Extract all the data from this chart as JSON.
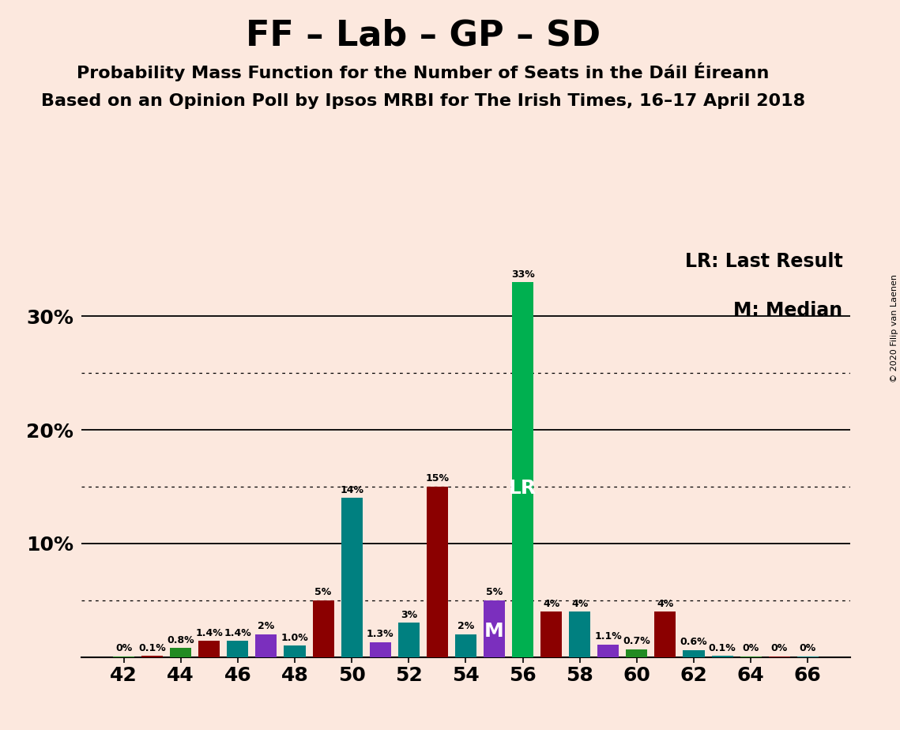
{
  "title": "FF – Lab – GP – SD",
  "subtitle1": "Probability Mass Function for the Number of Seats in the Dáil Éireann",
  "subtitle2": "Based on an Opinion Poll by Ipsos MRBI for The Irish Times, 16–17 April 2018",
  "copyright": "© 2020 Filip van Laenen",
  "legend_lr": "LR: Last Result",
  "legend_m": "M: Median",
  "background_color": "#fce8de",
  "bar_data": [
    {
      "seat": 42,
      "value": 0.05,
      "color": "#228b22",
      "label": "0%"
    },
    {
      "seat": 43,
      "value": 0.1,
      "color": "#8b0000",
      "label": "0.1%"
    },
    {
      "seat": 44,
      "value": 0.8,
      "color": "#228b22",
      "label": "0.8%"
    },
    {
      "seat": 45,
      "value": 1.4,
      "color": "#8b0000",
      "label": "1.4%"
    },
    {
      "seat": 46,
      "value": 1.4,
      "color": "#008080",
      "label": "1.4%"
    },
    {
      "seat": 47,
      "value": 2.0,
      "color": "#7b2fbe",
      "label": "2%"
    },
    {
      "seat": 48,
      "value": 1.0,
      "color": "#008080",
      "label": "1.0%"
    },
    {
      "seat": 49,
      "value": 5.0,
      "color": "#8b0000",
      "label": "5%"
    },
    {
      "seat": 50,
      "value": 14.0,
      "color": "#008080",
      "label": "14%"
    },
    {
      "seat": 51,
      "value": 1.3,
      "color": "#7b2fbe",
      "label": "1.3%"
    },
    {
      "seat": 52,
      "value": 3.0,
      "color": "#008080",
      "label": "3%"
    },
    {
      "seat": 53,
      "value": 15.0,
      "color": "#8b0000",
      "label": "15%"
    },
    {
      "seat": 54,
      "value": 2.0,
      "color": "#008080",
      "label": "2%"
    },
    {
      "seat": 55,
      "value": 5.0,
      "color": "#7b2fbe",
      "label": "5%",
      "marker": "M"
    },
    {
      "seat": 56,
      "value": 33.0,
      "color": "#00b050",
      "label": "33%",
      "marker": "LR"
    },
    {
      "seat": 57,
      "value": 4.0,
      "color": "#8b0000",
      "label": "4%"
    },
    {
      "seat": 58,
      "value": 4.0,
      "color": "#008080",
      "label": "4%"
    },
    {
      "seat": 59,
      "value": 1.1,
      "color": "#7b2fbe",
      "label": "1.1%"
    },
    {
      "seat": 60,
      "value": 0.7,
      "color": "#228b22",
      "label": "0.7%"
    },
    {
      "seat": 61,
      "value": 4.0,
      "color": "#8b0000",
      "label": "4%"
    },
    {
      "seat": 62,
      "value": 0.6,
      "color": "#008080",
      "label": "0.6%"
    },
    {
      "seat": 63,
      "value": 0.1,
      "color": "#008080",
      "label": "0.1%"
    },
    {
      "seat": 64,
      "value": 0.05,
      "color": "#228b22",
      "label": "0%"
    },
    {
      "seat": 65,
      "value": 0.05,
      "color": "#8b0000",
      "label": "0%"
    },
    {
      "seat": 66,
      "value": 0.05,
      "color": "#008080",
      "label": "0%"
    }
  ],
  "xlim": [
    40.5,
    67.5
  ],
  "ylim": [
    0,
    36
  ],
  "solid_yticks": [
    10,
    20,
    30
  ],
  "dotted_yticks": [
    5,
    15,
    25
  ],
  "xticks": [
    42,
    44,
    46,
    48,
    50,
    52,
    54,
    56,
    58,
    60,
    62,
    64,
    66
  ],
  "bar_width": 0.75,
  "title_fontsize": 32,
  "subtitle_fontsize": 16,
  "ytick_fontsize": 18,
  "xtick_fontsize": 18,
  "legend_fontsize": 17,
  "bar_label_fontsize": 9,
  "marker_fontsize": 18
}
